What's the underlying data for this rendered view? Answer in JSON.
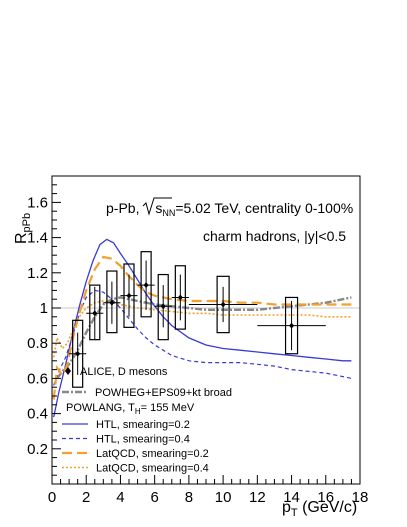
{
  "chart_data": {
    "type": "line",
    "ylabel": "R_pPb",
    "xlabel": "p_T (GeV/c)",
    "xlim": [
      0,
      18
    ],
    "ylim": [
      0,
      1.75
    ],
    "xticks": [
      0,
      2,
      4,
      6,
      8,
      10,
      12,
      14,
      16,
      18
    ],
    "yticks": [
      0.2,
      0.4,
      0.6,
      0.8,
      1,
      1.2,
      1.4,
      1.6
    ],
    "annotations": {
      "line1_a": "p-Pb, ",
      "line1_b": "s",
      "line1_c": "NN",
      "line1_d": "=5.02 TeV, centrality 0-100%",
      "line2": "charm hadrons, |y|<0.5",
      "model_header": "POWLANG, T",
      "model_header_sub": "H",
      "model_header_tail": "= 155 MeV"
    },
    "data_series": {
      "name": "ALICE, D mesons",
      "points": [
        {
          "x": 1.5,
          "y": 0.74,
          "xerr": 0.5,
          "stat": 0.12,
          "sys_lo": 0.55,
          "sys_hi": 0.93
        },
        {
          "x": 2.5,
          "y": 0.97,
          "xerr": 0.5,
          "stat": 0.15,
          "sys_lo": 0.82,
          "sys_hi": 1.13
        },
        {
          "x": 3.5,
          "y": 1.03,
          "xerr": 0.5,
          "stat": 0.12,
          "sys_lo": 0.86,
          "sys_hi": 1.21
        },
        {
          "x": 4.5,
          "y": 1.07,
          "xerr": 0.5,
          "stat": 0.12,
          "sys_lo": 0.89,
          "sys_hi": 1.25
        },
        {
          "x": 5.5,
          "y": 1.13,
          "xerr": 0.5,
          "stat": 0.14,
          "sys_lo": 0.95,
          "sys_hi": 1.32
        },
        {
          "x": 6.5,
          "y": 1.01,
          "xerr": 0.5,
          "stat": 0.12,
          "sys_lo": 0.82,
          "sys_hi": 1.19
        },
        {
          "x": 7.5,
          "y": 1.06,
          "xerr": 0.5,
          "stat": 0.13,
          "sys_lo": 0.88,
          "sys_hi": 1.24
        },
        {
          "x": 10,
          "y": 1.02,
          "xerr": 2,
          "stat": 0.1,
          "sys_lo": 0.86,
          "sys_hi": 1.18
        },
        {
          "x": 14,
          "y": 0.9,
          "xerr": 2,
          "stat": 0.14,
          "sys_lo": 0.74,
          "sys_hi": 1.06
        }
      ]
    },
    "series": [
      {
        "name": "POWHEG+EPS09+kt broad",
        "color": "#888888",
        "style": "dashdot",
        "x": [
          0.3,
          0.6,
          1,
          1.5,
          2,
          2.5,
          3,
          3.5,
          4,
          5,
          6,
          7,
          8,
          9,
          10,
          11,
          12,
          13,
          14,
          15,
          16,
          17,
          17.5
        ],
        "y": [
          0.6,
          0.64,
          0.68,
          0.76,
          0.86,
          0.95,
          1.02,
          1.05,
          1.06,
          1.04,
          1.02,
          1.01,
          1.0,
          0.99,
          0.99,
          0.99,
          0.99,
          1.0,
          1.01,
          1.02,
          1.03,
          1.05,
          1.06
        ]
      },
      {
        "name": "HTL, smearing=0.2",
        "color": "#3a3ad8",
        "style": "solid",
        "x": [
          0.1,
          0.4,
          0.8,
          1.2,
          1.6,
          2,
          2.4,
          2.8,
          3.2,
          3.6,
          4,
          4.5,
          5,
          5.5,
          6,
          6.5,
          7,
          8,
          9,
          10,
          11,
          12,
          13,
          14,
          15,
          16,
          17,
          17.5
        ],
        "y": [
          0.38,
          0.52,
          0.68,
          0.85,
          1.01,
          1.15,
          1.27,
          1.36,
          1.39,
          1.37,
          1.31,
          1.24,
          1.16,
          1.08,
          1.01,
          0.95,
          0.9,
          0.83,
          0.79,
          0.77,
          0.76,
          0.75,
          0.74,
          0.73,
          0.72,
          0.71,
          0.7,
          0.7
        ]
      },
      {
        "name": "HTL, smearing=0.4",
        "color": "#3a3ad8",
        "style": "dashed",
        "x": [
          0.1,
          0.4,
          0.8,
          1.2,
          1.6,
          2,
          2.5,
          3,
          3.5,
          4,
          4.5,
          5,
          5.5,
          6,
          7,
          8,
          9,
          10,
          11,
          12,
          13,
          14,
          15,
          16,
          17,
          17.5
        ],
        "y": [
          0.56,
          0.64,
          0.72,
          0.84,
          0.97,
          1.06,
          1.1,
          1.09,
          1.05,
          1.0,
          0.94,
          0.88,
          0.83,
          0.79,
          0.73,
          0.7,
          0.69,
          0.69,
          0.69,
          0.68,
          0.67,
          0.65,
          0.64,
          0.63,
          0.61,
          0.6
        ]
      },
      {
        "name": "LatQCD, smearing=0.2",
        "color": "#f2a02e",
        "style": "longdash",
        "x": [
          0.1,
          0.3,
          0.6,
          0.9,
          1.2,
          1.6,
          2,
          2.5,
          3,
          3.5,
          4,
          4.5,
          5,
          5.5,
          6,
          7,
          8,
          9,
          10,
          11,
          12,
          13,
          14,
          15,
          16,
          17,
          17.5
        ],
        "y": [
          0.48,
          0.66,
          0.62,
          0.68,
          0.82,
          0.97,
          1.1,
          1.22,
          1.29,
          1.28,
          1.24,
          1.18,
          1.13,
          1.09,
          1.07,
          1.05,
          1.04,
          1.04,
          1.04,
          1.03,
          1.03,
          1.02,
          1.02,
          1.02,
          1.02,
          1.02,
          1.02
        ]
      },
      {
        "name": "LatQCD, smearing=0.4",
        "color": "#f2a02e",
        "style": "dotted",
        "x": [
          0.1,
          0.3,
          0.6,
          0.9,
          1.2,
          1.6,
          2,
          2.5,
          3,
          3.5,
          4,
          4.5,
          5,
          6,
          7,
          8,
          9,
          10,
          11,
          12,
          13,
          14,
          15,
          16,
          17,
          17.5
        ],
        "y": [
          0.72,
          0.83,
          0.77,
          0.8,
          0.87,
          0.95,
          1.0,
          1.03,
          1.04,
          1.03,
          1.02,
          1.01,
          1.0,
          0.99,
          0.98,
          0.97,
          0.97,
          0.96,
          0.96,
          0.96,
          0.96,
          0.96,
          0.96,
          0.95,
          0.95,
          0.95
        ]
      }
    ],
    "reference_line": {
      "y": 1
    },
    "grid": false,
    "legend_position": "bottom-left"
  }
}
